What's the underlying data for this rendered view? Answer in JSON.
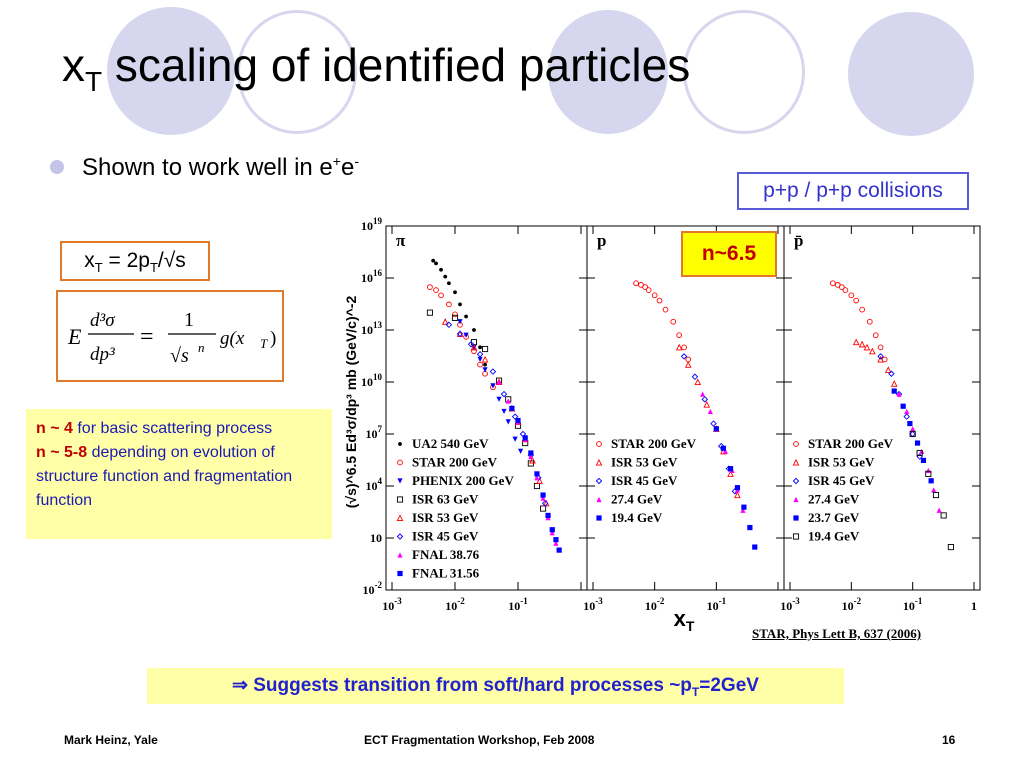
{
  "slide": {
    "title_main": "x",
    "title_sub": "T",
    "title_rest": " scaling of identified particles",
    "bullet": {
      "text": "Shown to work well in e",
      "sup1": "+",
      "text2": "e",
      "sup2": "-"
    },
    "collisions_label": "p+p /   p+p collisions",
    "xt_def": {
      "a": "x",
      "a_sub": "T",
      "b": " = 2p",
      "b_sub": "T",
      "c": "/√s"
    },
    "formula": {
      "lhs_E": "E",
      "d3sigma": "d³σ",
      "dp3": "dp³",
      "eq": "=",
      "one": "1",
      "sqrt_s": "√s",
      "n": "n",
      "g": "g(x",
      "g_sub": "T",
      "g_close": ")"
    },
    "note": {
      "n4": "n ~ 4",
      "n4_text": " for basic scattering process",
      "n58": "n ~ 5-8",
      "n58_text": " depending on evolution of structure function and fragmentation function"
    },
    "n_label": "n~6.5",
    "reference": "STAR, Phys Lett B, 637 (2006)",
    "conclusion": {
      "arrow": "⇒",
      "text": " Suggests transition from soft/hard processes ~p",
      "sub": "T",
      "text2": "=2GeV"
    },
    "footer": {
      "left": "Mark Heinz, Yale",
      "center": "ECT Fragmentation Workshop, Feb 2008",
      "right": "16"
    },
    "colors": {
      "accent_blue": "#2222cc",
      "orange_border": "#e07a2a",
      "note_bg": "#ffffa8",
      "deco": "#d6d6ee"
    }
  },
  "chart_data": {
    "type": "scatter",
    "log_x": true,
    "log_y": true,
    "xlabel": "x",
    "xlabel_sub": "T",
    "ylabel": "(√s)^6.5 Ed³σ/dp³ mb (GeV/c)^-2",
    "x_range": [
      0.001,
      1
    ],
    "y_range": [
      0.01,
      1e+19
    ],
    "x_ticks": [
      "10-3",
      "10-2",
      "10-1",
      "1"
    ],
    "y_ticks": [
      "10-2",
      "10",
      "104",
      "107",
      "1010",
      "1013",
      "1016",
      "1019"
    ],
    "panels": [
      {
        "label": "π",
        "series": [
          {
            "name": "UA2 540 GeV",
            "marker": "dot",
            "color": "#000000",
            "points": [
              [
                0.0045,
                1e+17
              ],
              [
                0.005,
                7e+16
              ],
              [
                0.006,
                3e+16
              ],
              [
                0.007,
                1.2e+16
              ],
              [
                0.008,
                5000000000000000.0
              ],
              [
                0.01,
                1500000000000000.0
              ],
              [
                0.012,
                300000000000000.0
              ],
              [
                0.015,
                60000000000000.0
              ],
              [
                0.02,
                10000000000000.0
              ],
              [
                0.025,
                1000000000000.0
              ],
              [
                0.03,
                100000000000.0
              ]
            ]
          },
          {
            "name": "STAR 200 GeV",
            "marker": "circle-open",
            "color": "#ff0000",
            "points": [
              [
                0.004,
                3000000000000000.0
              ],
              [
                0.005,
                2000000000000000.0
              ],
              [
                0.006,
                1000000000000000.0
              ],
              [
                0.008,
                300000000000000.0
              ],
              [
                0.01,
                80000000000000.0
              ],
              [
                0.012,
                20000000000000.0
              ],
              [
                0.015,
                4000000000000.0
              ],
              [
                0.02,
                600000000000.0
              ],
              [
                0.025,
                100000000000.0
              ],
              [
                0.03,
                30000000000.0
              ],
              [
                0.04,
                5000000000.0
              ]
            ]
          },
          {
            "name": "PHENIX 200 GeV",
            "marker": "triangle-down",
            "color": "#0000ff",
            "points": [
              [
                0.012,
                30000000000000.0
              ],
              [
                0.015,
                5000000000000.0
              ],
              [
                0.02,
                1000000000000.0
              ],
              [
                0.025,
                200000000000.0
              ],
              [
                0.03,
                50000000000.0
              ],
              [
                0.04,
                6000000000.0
              ],
              [
                0.05,
                1000000000.0
              ],
              [
                0.06,
                200000000.0
              ],
              [
                0.07,
                50000000.0
              ],
              [
                0.09,
                5000000.0
              ],
              [
                0.11,
                1000000.0
              ]
            ]
          },
          {
            "name": "ISR 63 GeV",
            "marker": "square-open",
            "color": "#000000",
            "points": [
              [
                0.004,
                100000000000000.0
              ],
              [
                0.01,
                50000000000000.0
              ],
              [
                0.02,
                2000000000000.0
              ],
              [
                0.03,
                800000000000.0
              ],
              [
                0.05,
                12000000000.0
              ],
              [
                0.07,
                1000000000.0
              ],
              [
                0.1,
                30000000.0
              ],
              [
                0.13,
                3000000.0
              ],
              [
                0.16,
                200000.0
              ],
              [
                0.2,
                10000.0
              ],
              [
                0.25,
                500
              ]
            ]
          },
          {
            "name": "ISR 53 GeV",
            "marker": "triangle-open",
            "color": "#ff0000",
            "points": [
              [
                0.007,
                30000000000000.0
              ],
              [
                0.012,
                6000000000000.0
              ],
              [
                0.02,
                1000000000000.0
              ],
              [
                0.03,
                200000000000.0
              ],
              [
                0.05,
                10000000000.0
              ],
              [
                0.08,
                300000000.0
              ],
              [
                0.1,
                50000000.0
              ],
              [
                0.13,
                5000000.0
              ],
              [
                0.17,
                300000.0
              ],
              [
                0.22,
                20000.0
              ],
              [
                0.28,
                1000.0
              ]
            ]
          },
          {
            "name": "ISR 45 GeV",
            "marker": "diamond-open",
            "color": "#0000ff",
            "points": [
              [
                0.008,
                20000000000000.0
              ],
              [
                0.012,
                6000000000000.0
              ],
              [
                0.018,
                1500000000000.0
              ],
              [
                0.025,
                400000000000.0
              ],
              [
                0.04,
                40000000000.0
              ],
              [
                0.06,
                2000000000.0
              ],
              [
                0.09,
                100000000.0
              ],
              [
                0.12,
                10000000.0
              ],
              [
                0.16,
                600000.0
              ],
              [
                0.21,
                30000.0
              ],
              [
                0.27,
                1000.0
              ]
            ]
          },
          {
            "name": "FNAL 38.76",
            "marker": "triangle-filled",
            "color": "#ff00ff",
            "points": [
              [
                0.05,
                10000000000.0
              ],
              [
                0.07,
                800000000.0
              ],
              [
                0.1,
                50000000.0
              ],
              [
                0.13,
                5000000.0
              ],
              [
                0.16,
                500000.0
              ],
              [
                0.2,
                30000.0
              ],
              [
                0.25,
                2000.0
              ],
              [
                0.3,
                150
              ],
              [
                0.35,
                20
              ],
              [
                0.4,
                5
              ]
            ]
          },
          {
            "name": "FNAL 31.56",
            "marker": "square-filled",
            "color": "#0000ff",
            "points": [
              [
                0.08,
                300000000.0
              ],
              [
                0.1,
                60000000.0
              ],
              [
                0.13,
                6000000.0
              ],
              [
                0.16,
                800000.0
              ],
              [
                0.2,
                50000.0
              ],
              [
                0.25,
                3000.0
              ],
              [
                0.3,
                200
              ],
              [
                0.35,
                30
              ],
              [
                0.4,
                8
              ],
              [
                0.45,
                2
              ]
            ]
          }
        ]
      },
      {
        "label": "p",
        "series": [
          {
            "name": "STAR 200 GeV",
            "marker": "circle-open",
            "color": "#ff0000",
            "points": [
              [
                0.005,
                5000000000000000.0
              ],
              [
                0.006,
                4000000000000000.0
              ],
              [
                0.007,
                3000000000000000.0
              ],
              [
                0.008,
                2000000000000000.0
              ],
              [
                0.01,
                1000000000000000.0
              ],
              [
                0.012,
                500000000000000.0
              ],
              [
                0.015,
                150000000000000.0
              ],
              [
                0.02,
                30000000000000.0
              ],
              [
                0.025,
                5000000000000.0
              ],
              [
                0.03,
                1000000000000.0
              ],
              [
                0.035,
                200000000000.0
              ]
            ]
          },
          {
            "name": "ISR 53 GeV",
            "marker": "triangle-open",
            "color": "#ff0000",
            "points": [
              [
                0.025,
                1000000000000.0
              ],
              [
                0.035,
                100000000000.0
              ],
              [
                0.05,
                10000000000.0
              ],
              [
                0.07,
                500000000.0
              ],
              [
                0.1,
                20000000.0
              ],
              [
                0.13,
                1000000.0
              ],
              [
                0.17,
                50000.0
              ],
              [
                0.22,
                3000.0
              ]
            ]
          },
          {
            "name": "ISR 45 GeV",
            "marker": "diamond-open",
            "color": "#0000ff",
            "points": [
              [
                0.03,
                300000000000.0
              ],
              [
                0.045,
                20000000000.0
              ],
              [
                0.065,
                1000000000.0
              ],
              [
                0.09,
                40000000.0
              ],
              [
                0.12,
                2000000.0
              ],
              [
                0.16,
                100000.0
              ],
              [
                0.2,
                5000.0
              ]
            ]
          },
          {
            "name": "27.4 GeV",
            "marker": "triangle-filled",
            "color": "#ff00ff",
            "points": [
              [
                0.06,
                2000000000.0
              ],
              [
                0.08,
                200000000.0
              ],
              [
                0.1,
                20000000.0
              ],
              [
                0.14,
                1000000.0
              ],
              [
                0.18,
                80000.0
              ],
              [
                0.22,
                6000.0
              ],
              [
                0.27,
                400
              ]
            ]
          },
          {
            "name": "19.4 GeV",
            "marker": "square-filled",
            "color": "#0000ff",
            "points": [
              [
                0.1,
                20000000.0
              ],
              [
                0.13,
                1500000.0
              ],
              [
                0.17,
                100000.0
              ],
              [
                0.22,
                8000.0
              ],
              [
                0.28,
                600
              ],
              [
                0.35,
                40
              ],
              [
                0.42,
                3
              ]
            ]
          }
        ]
      },
      {
        "label": "p̄",
        "series": [
          {
            "name": "STAR 200 GeV",
            "marker": "circle-open",
            "color": "#ff0000",
            "points": [
              [
                0.005,
                5000000000000000.0
              ],
              [
                0.006,
                4000000000000000.0
              ],
              [
                0.007,
                3000000000000000.0
              ],
              [
                0.008,
                2000000000000000.0
              ],
              [
                0.01,
                1000000000000000.0
              ],
              [
                0.012,
                500000000000000.0
              ],
              [
                0.015,
                150000000000000.0
              ],
              [
                0.02,
                30000000000000.0
              ],
              [
                0.025,
                5000000000000.0
              ],
              [
                0.03,
                1000000000000.0
              ],
              [
                0.035,
                200000000000.0
              ]
            ]
          },
          {
            "name": "ISR 53 GeV",
            "marker": "triangle-open",
            "color": "#ff0000",
            "points": [
              [
                0.012,
                2000000000000.0
              ],
              [
                0.015,
                1500000000000.0
              ],
              [
                0.018,
                1000000000000.0
              ],
              [
                0.022,
                600000000000.0
              ],
              [
                0.03,
                200000000000.0
              ],
              [
                0.04,
                50000000000.0
              ],
              [
                0.05,
                8000000000.0
              ]
            ]
          },
          {
            "name": "ISR 45 GeV",
            "marker": "diamond-open",
            "color": "#0000ff",
            "points": [
              [
                0.03,
                300000000000.0
              ],
              [
                0.045,
                30000000000.0
              ],
              [
                0.06,
                2000000000.0
              ],
              [
                0.08,
                100000000.0
              ],
              [
                0.1,
                10000000.0
              ],
              [
                0.13,
                500000.0
              ]
            ]
          },
          {
            "name": "27.4 GeV",
            "marker": "triangle-filled",
            "color": "#ff00ff",
            "points": [
              [
                0.06,
                2000000000.0
              ],
              [
                0.08,
                200000000.0
              ],
              [
                0.1,
                20000000.0
              ],
              [
                0.14,
                1000000.0
              ],
              [
                0.18,
                80000.0
              ],
              [
                0.22,
                6000.0
              ],
              [
                0.27,
                400
              ]
            ]
          },
          {
            "name": "23.7 GeV",
            "marker": "square-filled",
            "color": "#0000ff",
            "points": [
              [
                0.05,
                3000000000.0
              ],
              [
                0.07,
                400000000.0
              ],
              [
                0.09,
                40000000.0
              ],
              [
                0.12,
                3000000.0
              ],
              [
                0.15,
                300000.0
              ],
              [
                0.2,
                20000.0
              ]
            ]
          },
          {
            "name": "19.4 GeV",
            "marker": "square-open",
            "color": "#000000",
            "points": [
              [
                0.1,
                10000000.0
              ],
              [
                0.13,
                800000.0
              ],
              [
                0.18,
                50000.0
              ],
              [
                0.24,
                3000.0
              ],
              [
                0.32,
                200
              ],
              [
                0.42,
                3
              ]
            ]
          }
        ]
      }
    ]
  }
}
